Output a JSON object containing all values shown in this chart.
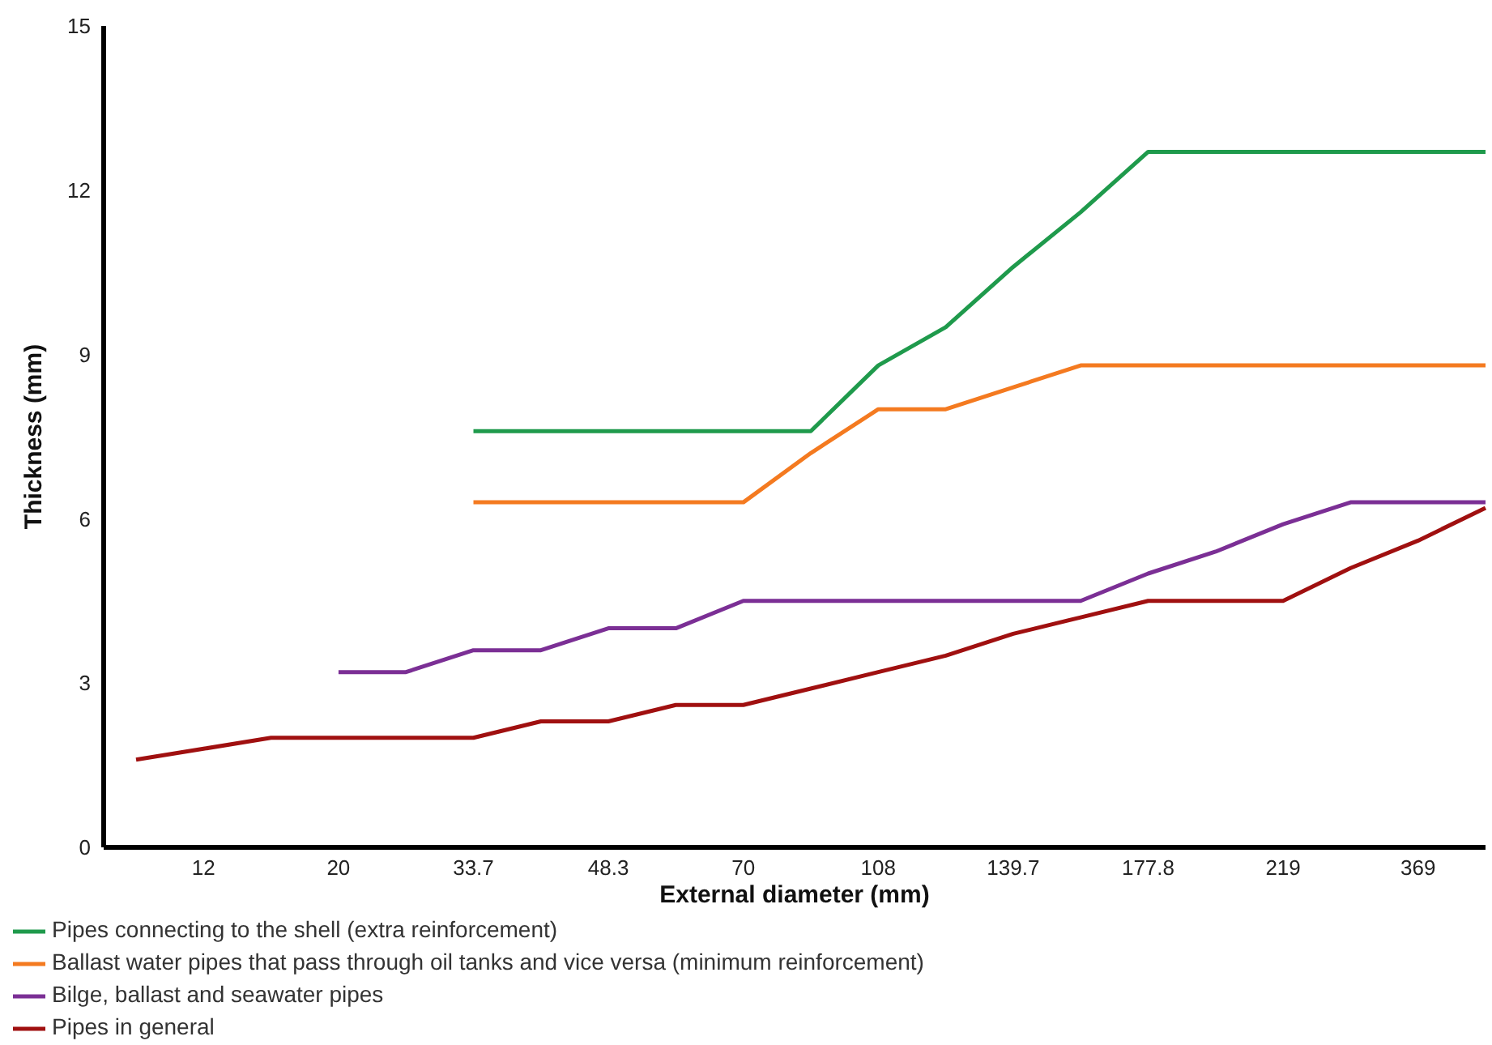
{
  "chart_data": {
    "type": "line",
    "xlabel": "External diameter (mm)",
    "ylabel": "Thickness (mm)",
    "categories": [
      null,
      "12",
      null,
      "20",
      null,
      "33.7",
      null,
      "48.3",
      null,
      "70",
      null,
      "108",
      null,
      "139.7",
      null,
      "177.8",
      null,
      "219",
      null,
      "369",
      null
    ],
    "ylim": [
      0,
      15
    ],
    "yticks": [
      0,
      3,
      6,
      9,
      12,
      15
    ],
    "grid": false,
    "legend": "bottom left",
    "marker": "none",
    "line_style": "solid",
    "series": [
      {
        "name": "Pipes connecting to the shell (extra reinforcement)",
        "color": "#1f9a4c",
        "values": [
          null,
          null,
          null,
          null,
          null,
          7.6,
          7.6,
          7.6,
          7.6,
          7.6,
          7.6,
          8.8,
          9.5,
          10.6,
          11.6,
          12.7,
          12.7,
          12.7,
          12.7,
          12.7,
          12.7
        ]
      },
      {
        "name": "Ballast water pipes that pass through oil tanks and vice versa (minimum reinforcement)",
        "color": "#f47a20",
        "values": [
          null,
          null,
          null,
          null,
          null,
          6.3,
          6.3,
          6.3,
          6.3,
          6.3,
          7.2,
          8.0,
          8.0,
          8.4,
          8.8,
          8.8,
          8.8,
          8.8,
          8.8,
          8.8,
          8.8
        ]
      },
      {
        "name": "Bilge, ballast and seawater pipes",
        "color": "#7b2f95",
        "values": [
          null,
          null,
          null,
          3.2,
          3.2,
          3.6,
          3.6,
          4.0,
          4.0,
          4.5,
          4.5,
          4.5,
          4.5,
          4.5,
          4.5,
          5.0,
          5.4,
          5.9,
          6.3,
          6.3,
          6.3
        ]
      },
      {
        "name": "Pipes in general",
        "color": "#a01010",
        "values": [
          1.6,
          1.8,
          2.0,
          2.0,
          2.0,
          2.0,
          2.3,
          2.3,
          2.6,
          2.6,
          2.9,
          3.2,
          3.5,
          3.9,
          4.2,
          4.5,
          4.5,
          4.5,
          5.1,
          5.6,
          6.2
        ]
      }
    ]
  }
}
